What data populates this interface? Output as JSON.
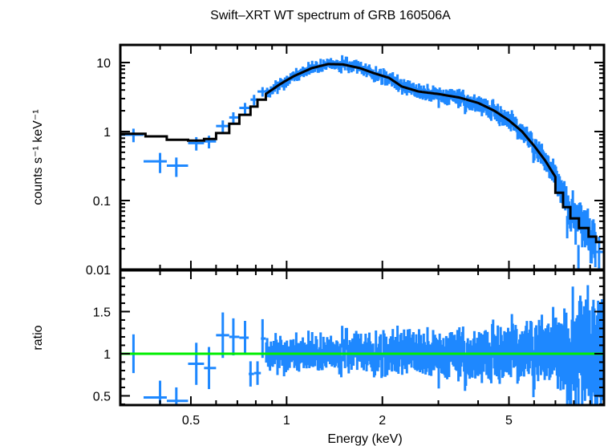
{
  "chart_data": {
    "type": "scatter",
    "title": "Swift–XRT WT spectrum of GRB 160506A",
    "xlabel": "Energy (keV)",
    "xscale": "log",
    "xlim": [
      0.3,
      9.95
    ],
    "x_ticks": [
      {
        "value": 0.5,
        "label": "0.5"
      },
      {
        "value": 1,
        "label": "1"
      },
      {
        "value": 2,
        "label": "2"
      },
      {
        "value": 5,
        "label": "5"
      }
    ],
    "panels": [
      {
        "name": "spectrum",
        "ylabel": "counts s⁻¹ keV⁻¹",
        "yscale": "log",
        "ylim": [
          0.01,
          18
        ],
        "y_ticks": [
          {
            "value": 0.01,
            "label": "0.01"
          },
          {
            "value": 0.1,
            "label": "0.1"
          },
          {
            "value": 1,
            "label": "1"
          },
          {
            "value": 10,
            "label": "10"
          }
        ],
        "series": [
          {
            "name": "data",
            "color": "#1e88ff",
            "points": [
              {
                "e": 0.33,
                "lo": 0.3,
                "hi": 0.355,
                "v": 0.9,
                "err": 0.2
              },
              {
                "e": 0.4,
                "lo": 0.355,
                "hi": 0.42,
                "v": 0.37,
                "err": 0.12
              },
              {
                "e": 0.45,
                "lo": 0.42,
                "hi": 0.49,
                "v": 0.32,
                "err": 0.1
              },
              {
                "e": 0.52,
                "lo": 0.49,
                "hi": 0.55,
                "v": 0.68,
                "err": 0.15
              },
              {
                "e": 0.57,
                "lo": 0.55,
                "hi": 0.6,
                "v": 0.72,
                "err": 0.15
              },
              {
                "e": 0.63,
                "lo": 0.6,
                "hi": 0.66,
                "v": 1.2,
                "err": 0.25
              },
              {
                "e": 0.68,
                "lo": 0.66,
                "hi": 0.71,
                "v": 1.6,
                "err": 0.3
              },
              {
                "e": 0.74,
                "lo": 0.71,
                "hi": 0.77,
                "v": 2.2,
                "err": 0.4
              },
              {
                "e": 0.79,
                "lo": 0.77,
                "hi": 0.81,
                "v": 2.9,
                "err": 0.5
              },
              {
                "e": 0.84,
                "lo": 0.81,
                "hi": 0.86,
                "v": 3.8,
                "err": 0.6
              }
            ],
            "dense_bins": {
              "e_start": 0.86,
              "e_end": 9.4,
              "count": 360,
              "noise_sigma": 0.13,
              "seed": 160506
            }
          },
          {
            "name": "model",
            "color": "#000000",
            "points": [
              {
                "e": 0.3,
                "v": 0.93
              },
              {
                "e": 0.36,
                "v": 0.85
              },
              {
                "e": 0.42,
                "v": 0.76
              },
              {
                "e": 0.49,
                "v": 0.74
              },
              {
                "e": 0.55,
                "v": 0.78
              },
              {
                "e": 0.6,
                "v": 0.95
              },
              {
                "e": 0.66,
                "v": 1.3
              },
              {
                "e": 0.71,
                "v": 1.75
              },
              {
                "e": 0.77,
                "v": 2.3
              },
              {
                "e": 0.81,
                "v": 2.9
              },
              {
                "e": 0.86,
                "v": 3.5
              },
              {
                "e": 0.95,
                "v": 4.8
              },
              {
                "e": 1.05,
                "v": 6.3
              },
              {
                "e": 1.2,
                "v": 8.3
              },
              {
                "e": 1.35,
                "v": 9.5
              },
              {
                "e": 1.5,
                "v": 9.4
              },
              {
                "e": 1.7,
                "v": 8.3
              },
              {
                "e": 1.9,
                "v": 6.9
              },
              {
                "e": 2.1,
                "v": 6.0
              },
              {
                "e": 2.3,
                "v": 4.5
              },
              {
                "e": 2.6,
                "v": 3.8
              },
              {
                "e": 3.0,
                "v": 3.5
              },
              {
                "e": 3.5,
                "v": 3.1
              },
              {
                "e": 4.0,
                "v": 2.6
              },
              {
                "e": 4.5,
                "v": 2.0
              },
              {
                "e": 5.0,
                "v": 1.45
              },
              {
                "e": 5.5,
                "v": 1.0
              },
              {
                "e": 6.0,
                "v": 0.62
              },
              {
                "e": 6.5,
                "v": 0.38
              },
              {
                "e": 7.0,
                "v": 0.22
              },
              {
                "e": 7.4,
                "v": 0.13
              },
              {
                "e": 7.8,
                "v": 0.08
              },
              {
                "e": 8.3,
                "v": 0.055
              },
              {
                "e": 8.8,
                "v": 0.04
              },
              {
                "e": 9.3,
                "v": 0.03
              },
              {
                "e": 9.95,
                "v": 0.025
              }
            ]
          }
        ]
      },
      {
        "name": "ratio",
        "ylabel": "ratio",
        "yscale": "linear",
        "ylim": [
          0.39,
          1.99
        ],
        "y_ticks": [
          {
            "value": 0.5,
            "label": "0.5"
          },
          {
            "value": 1,
            "label": "1"
          },
          {
            "value": 1.5,
            "label": "1.5"
          }
        ],
        "reference_line": {
          "value": 1,
          "color": "#00ee00"
        },
        "series": [
          {
            "name": "ratio",
            "color": "#1e88ff",
            "points": [
              {
                "e": 0.33,
                "lo": 0.3,
                "hi": 0.355,
                "v": 1.0,
                "err": 0.23
              },
              {
                "e": 0.4,
                "lo": 0.355,
                "hi": 0.42,
                "v": 0.48,
                "err": 0.2
              },
              {
                "e": 0.45,
                "lo": 0.42,
                "hi": 0.49,
                "v": 0.44,
                "err": 0.16
              },
              {
                "e": 0.52,
                "lo": 0.49,
                "hi": 0.55,
                "v": 0.88,
                "err": 0.25
              },
              {
                "e": 0.57,
                "lo": 0.55,
                "hi": 0.6,
                "v": 0.83,
                "err": 0.25
              },
              {
                "e": 0.63,
                "lo": 0.6,
                "hi": 0.66,
                "v": 1.22,
                "err": 0.27
              },
              {
                "e": 0.68,
                "lo": 0.66,
                "hi": 0.71,
                "v": 1.2,
                "err": 0.22
              },
              {
                "e": 0.74,
                "lo": 0.71,
                "hi": 0.76,
                "v": 1.19,
                "err": 0.2
              },
              {
                "e": 0.77,
                "lo": 0.76,
                "hi": 0.79,
                "v": 0.76,
                "err": 0.15
              },
              {
                "e": 0.81,
                "lo": 0.79,
                "hi": 0.83,
                "v": 0.77,
                "err": 0.14
              },
              {
                "e": 0.84,
                "lo": 0.83,
                "hi": 0.86,
                "v": 1.18,
                "err": 0.23
              }
            ],
            "dense_bins": {
              "e_start": 0.86,
              "e_end": 9.9,
              "count": 360,
              "noise_sigma": 0.15,
              "seed": 160506
            }
          }
        ]
      }
    ],
    "grid": false,
    "legend": "none"
  }
}
